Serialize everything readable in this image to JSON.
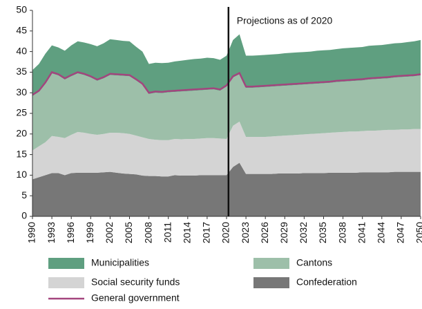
{
  "chart_data": {
    "type": "stacked_area",
    "x": [
      1990,
      1991,
      1992,
      1993,
      1994,
      1995,
      1996,
      1997,
      1998,
      1999,
      2000,
      2001,
      2002,
      2003,
      2004,
      2005,
      2006,
      2007,
      2008,
      2009,
      2010,
      2011,
      2012,
      2013,
      2014,
      2015,
      2016,
      2017,
      2018,
      2019,
      2020,
      2021,
      2022,
      2023,
      2024,
      2025,
      2026,
      2027,
      2028,
      2029,
      2030,
      2031,
      2032,
      2033,
      2034,
      2035,
      2036,
      2037,
      2038,
      2039,
      2040,
      2041,
      2042,
      2043,
      2044,
      2045,
      2046,
      2047,
      2048,
      2049,
      2050
    ],
    "series": [
      {
        "name": "Confederation",
        "color": "#777777",
        "values": [
          9.0,
          9.5,
          10.0,
          10.5,
          10.5,
          10.0,
          10.5,
          10.6,
          10.6,
          10.6,
          10.6,
          10.7,
          10.8,
          10.6,
          10.4,
          10.3,
          10.2,
          9.9,
          9.8,
          9.8,
          9.7,
          9.7,
          10.0,
          9.9,
          9.9,
          9.9,
          10.0,
          10.0,
          10.0,
          10.0,
          10.0,
          12.0,
          13.0,
          10.3,
          10.3,
          10.3,
          10.3,
          10.3,
          10.4,
          10.4,
          10.4,
          10.4,
          10.5,
          10.5,
          10.5,
          10.5,
          10.6,
          10.6,
          10.6,
          10.6,
          10.6,
          10.7,
          10.7,
          10.7,
          10.7,
          10.7,
          10.8,
          10.8,
          10.8,
          10.8,
          10.8
        ]
      },
      {
        "name": "Social security funds",
        "color": "#d4d4d4",
        "values": [
          7.0,
          7.5,
          8.0,
          9.0,
          8.8,
          9.0,
          9.3,
          9.9,
          9.7,
          9.4,
          9.2,
          9.3,
          9.5,
          9.7,
          9.8,
          9.7,
          9.4,
          9.3,
          9.0,
          8.8,
          8.8,
          8.8,
          8.8,
          8.8,
          8.9,
          8.9,
          8.9,
          9.0,
          9.0,
          8.9,
          8.8,
          10.0,
          10.0,
          9.0,
          9.0,
          9.0,
          9.0,
          9.1,
          9.1,
          9.2,
          9.3,
          9.4,
          9.4,
          9.5,
          9.6,
          9.7,
          9.7,
          9.8,
          9.9,
          10.0,
          10.0,
          10.0,
          10.1,
          10.1,
          10.2,
          10.3,
          10.2,
          10.3,
          10.3,
          10.4,
          10.4
        ]
      },
      {
        "name": "Cantons",
        "color": "#9dbfa9",
        "values": [
          13.2,
          13.2,
          14.2,
          15.2,
          14.9,
          14.2,
          14.2,
          14.2,
          14.0,
          13.7,
          13.1,
          13.5,
          14.0,
          13.9,
          13.9,
          14.0,
          13.4,
          12.7,
          10.9,
          11.4,
          11.4,
          11.6,
          11.4,
          11.6,
          11.6,
          11.7,
          11.7,
          11.7,
          11.8,
          11.6,
          12.7,
          11.7,
          11.5,
          11.9,
          11.9,
          12.0,
          12.1,
          12.1,
          12.1,
          12.1,
          12.1,
          12.1,
          12.1,
          12.1,
          12.1,
          12.1,
          12.1,
          12.2,
          12.2,
          12.2,
          12.3,
          12.3,
          12.4,
          12.5,
          12.5,
          12.5,
          12.7,
          12.7,
          12.8,
          12.8,
          13.0
        ]
      },
      {
        "name": "Municipalities",
        "color": "#5f9f80",
        "values": [
          6.3,
          6.8,
          7.3,
          6.8,
          6.8,
          7.0,
          7.5,
          7.8,
          7.9,
          8.1,
          8.4,
          8.5,
          8.7,
          8.6,
          8.5,
          8.5,
          8.2,
          8.1,
          7.3,
          7.3,
          7.3,
          7.2,
          7.4,
          7.5,
          7.6,
          7.7,
          7.7,
          7.8,
          7.6,
          7.5,
          7.5,
          9.1,
          9.7,
          7.8,
          7.8,
          7.8,
          7.8,
          7.8,
          7.8,
          7.9,
          7.9,
          7.9,
          7.9,
          7.9,
          8.0,
          8.0,
          8.0,
          8.0,
          8.1,
          8.1,
          8.1,
          8.1,
          8.2,
          8.2,
          8.2,
          8.3,
          8.3,
          8.3,
          8.4,
          8.5,
          8.6
        ]
      },
      {
        "name": "General government",
        "color": "#a3457e",
        "type": "line",
        "values": [
          29.5,
          30.5,
          32.5,
          35.0,
          34.5,
          33.5,
          34.3,
          35.0,
          34.6,
          34.0,
          33.2,
          33.8,
          34.6,
          34.5,
          34.4,
          34.3,
          33.3,
          32.2,
          30.0,
          30.3,
          30.2,
          30.4,
          30.5,
          30.6,
          30.7,
          30.8,
          30.9,
          31.0,
          31.1,
          30.8,
          31.8,
          34.0,
          34.8,
          31.5,
          31.5,
          31.6,
          31.7,
          31.8,
          31.9,
          32.0,
          32.1,
          32.2,
          32.3,
          32.4,
          32.5,
          32.6,
          32.7,
          32.9,
          33.0,
          33.1,
          33.2,
          33.3,
          33.5,
          33.6,
          33.7,
          33.8,
          34.0,
          34.1,
          34.2,
          34.3,
          34.5
        ]
      }
    ],
    "xlim": [
      1990,
      2050
    ],
    "xticks": [
      1990,
      1993,
      1996,
      1999,
      2002,
      2005,
      2008,
      2011,
      2014,
      2017,
      2020,
      2023,
      2026,
      2029,
      2032,
      2035,
      2038,
      2041,
      2044,
      2047,
      2050
    ],
    "ylim": [
      0,
      50
    ],
    "yticks": [
      0,
      5,
      10,
      15,
      20,
      25,
      30,
      35,
      40,
      45,
      50
    ],
    "annotation": {
      "text": "Projections as of 2020",
      "x": 2020.3
    }
  }
}
